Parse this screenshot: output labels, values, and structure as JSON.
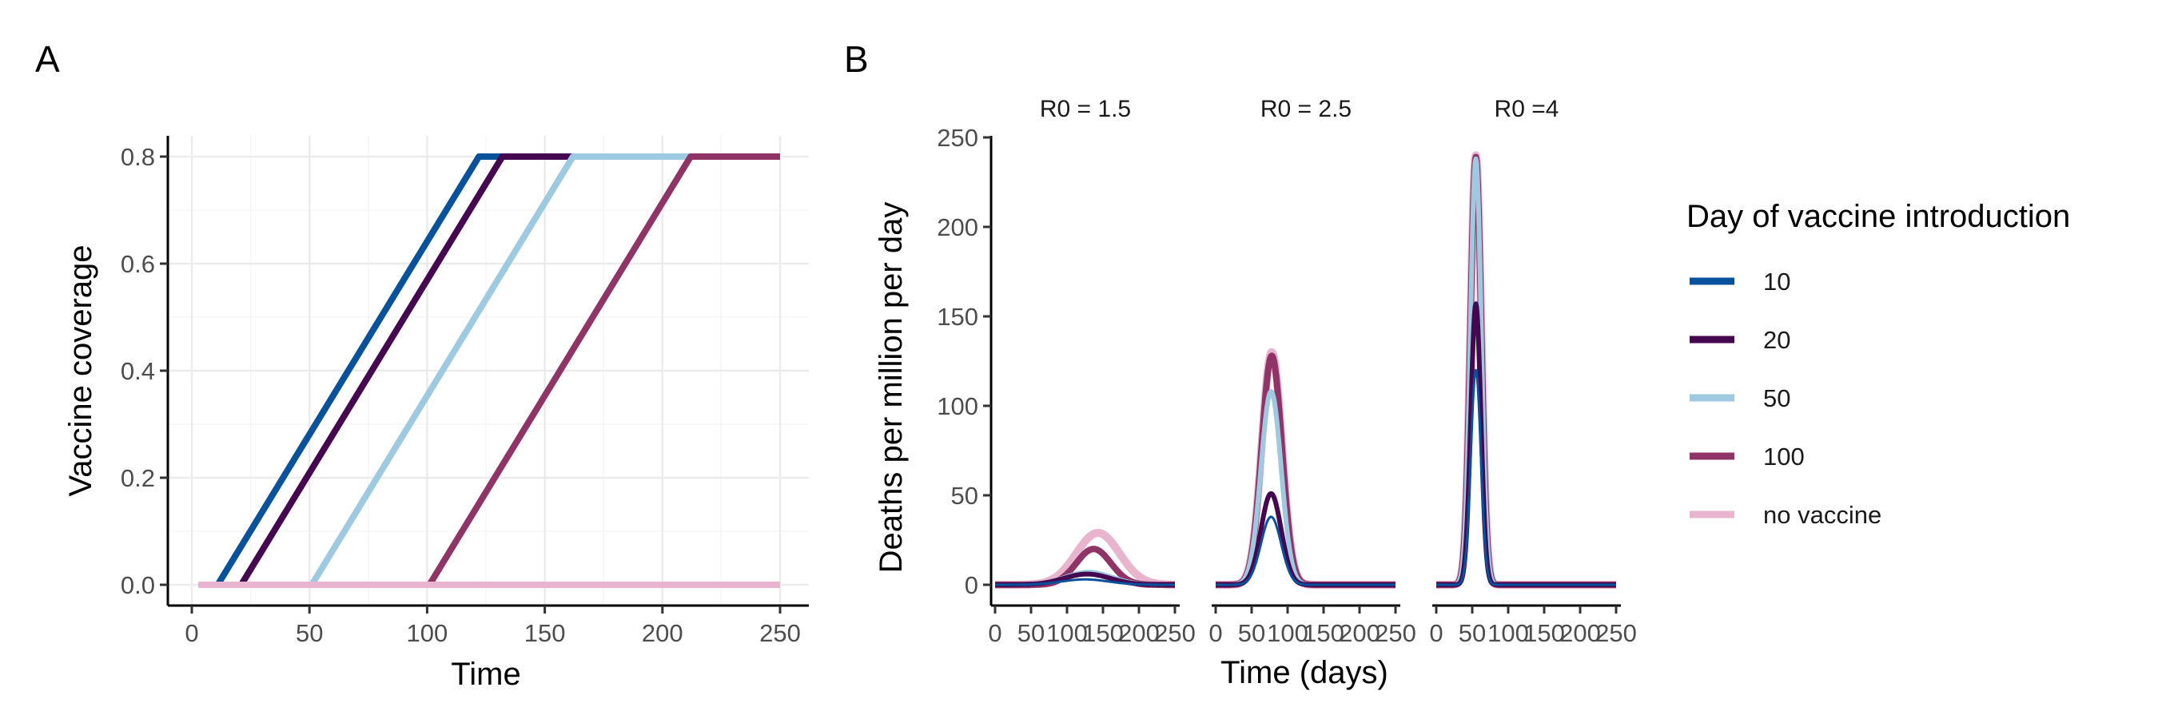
{
  "colors": {
    "10": "#08519c",
    "20": "#45074f",
    "50": "#9ecae1",
    "100": "#903468",
    "no vaccine": "#e8b4ce"
  },
  "chart_data": [
    {
      "panel": "A",
      "type": "line",
      "xlabel": "Time",
      "ylabel": "Vaccine coverage",
      "xlim": [
        0,
        250
      ],
      "ylim": [
        0,
        0.8
      ],
      "xticks": [
        "0",
        "50",
        "100",
        "150",
        "200",
        "250"
      ],
      "yticks": [
        "0.0",
        "0.2",
        "0.4",
        "0.6",
        "0.8"
      ],
      "grid": true,
      "series": [
        {
          "name": "10",
          "x": [
            3,
            11,
            122,
            250
          ],
          "y": [
            0,
            0,
            0.8,
            0.8
          ]
        },
        {
          "name": "20",
          "x": [
            3,
            21,
            132,
            250
          ],
          "y": [
            0,
            0,
            0.8,
            0.8
          ]
        },
        {
          "name": "50",
          "x": [
            3,
            51,
            162,
            250
          ],
          "y": [
            0,
            0,
            0.8,
            0.8
          ]
        },
        {
          "name": "100",
          "x": [
            3,
            101,
            212,
            250
          ],
          "y": [
            0,
            0,
            0.8,
            0.8
          ]
        },
        {
          "name": "no vaccine",
          "x": [
            3,
            250
          ],
          "y": [
            0,
            0
          ]
        }
      ]
    },
    {
      "panel": "B",
      "type": "line",
      "xlabel": "Time (days)",
      "ylabel": "Deaths per million per day",
      "ylim": [
        0,
        250
      ],
      "yticks": [
        "0",
        "50",
        "100",
        "150",
        "200",
        "250"
      ],
      "grid": false,
      "facets": [
        {
          "title": "R0 = 1.5",
          "xlim": [
            0,
            250
          ],
          "xticks": [
            "0",
            "50",
            "100",
            "150",
            "200",
            "250"
          ],
          "series": [
            {
              "name": "10",
              "peak_day": 125,
              "peak": 3,
              "width": 33
            },
            {
              "name": "20",
              "peak_day": 128,
              "peak": 6,
              "width": 32
            },
            {
              "name": "50",
              "peak_day": 130,
              "peak": 7,
              "width": 32
            },
            {
              "name": "100",
              "peak_day": 137,
              "peak": 20,
              "width": 24
            },
            {
              "name": "no vaccine",
              "peak_day": 143,
              "peak": 29,
              "width": 30
            }
          ]
        },
        {
          "title": "R0 = 2.5",
          "xlim": [
            0,
            250
          ],
          "xticks": [
            "0",
            "50",
            "100",
            "150",
            "200",
            "250"
          ],
          "series": [
            {
              "name": "10",
              "peak_day": 77,
              "peak": 38,
              "width": 14
            },
            {
              "name": "20",
              "peak_day": 77,
              "peak": 51,
              "width": 14
            },
            {
              "name": "50",
              "peak_day": 77,
              "peak": 108,
              "width": 14
            },
            {
              "name": "100",
              "peak_day": 78,
              "peak": 128,
              "width": 14
            },
            {
              "name": "no vaccine",
              "peak_day": 78,
              "peak": 130,
              "width": 14
            }
          ]
        },
        {
          "title": "R0 =4",
          "xlim": [
            0,
            250
          ],
          "xticks": [
            "0",
            "50",
            "100",
            "150",
            "200",
            "250"
          ],
          "series": [
            {
              "name": "10",
              "peak_day": 55,
              "peak": 120,
              "width": 7
            },
            {
              "name": "20",
              "peak_day": 55,
              "peak": 157,
              "width": 7
            },
            {
              "name": "50",
              "peak_day": 55,
              "peak": 238,
              "width": 7.5
            },
            {
              "name": "100",
              "peak_day": 55,
              "peak": 239,
              "width": 7.5
            },
            {
              "name": "no vaccine",
              "peak_day": 55,
              "peak": 240,
              "width": 7.5
            }
          ]
        }
      ]
    }
  ],
  "legend": {
    "title": "Day of vaccine introduction",
    "placement": "right",
    "items": [
      "10",
      "20",
      "50",
      "100",
      "no vaccine"
    ]
  }
}
